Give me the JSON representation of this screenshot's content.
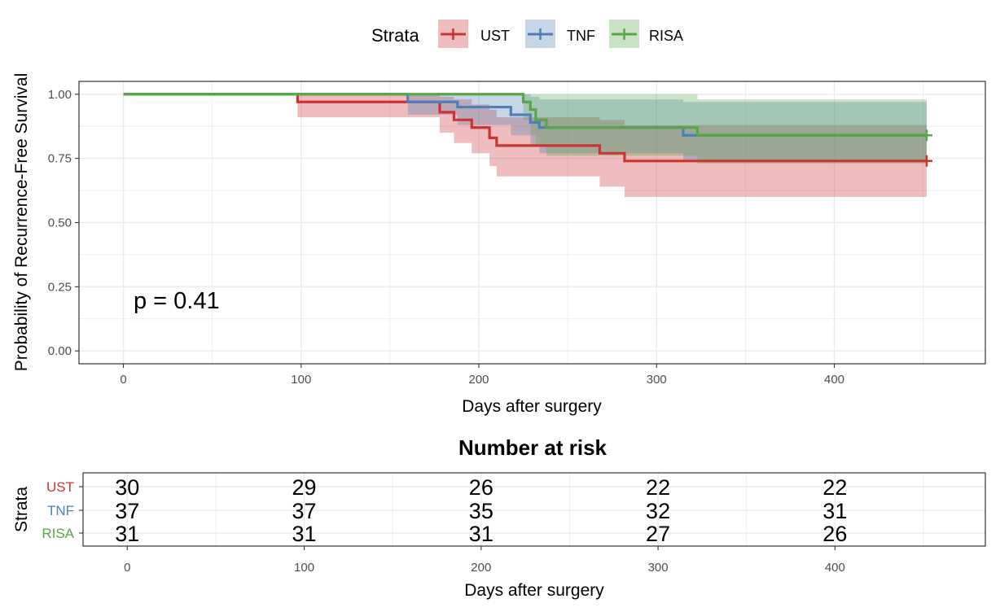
{
  "chart_data": [
    {
      "type": "line",
      "subtype": "kaplan-meier",
      "xlabel": "Days after surgery",
      "ylabel": "Probability of Recurrence-Free Survival",
      "xlim": [
        -25,
        485
      ],
      "ylim": [
        -0.05,
        1.05
      ],
      "x_ticks": [
        "0",
        "100",
        "200",
        "300",
        "400"
      ],
      "y_ticks": [
        "0.00",
        "0.25",
        "0.50",
        "0.75",
        "1.00"
      ],
      "grid": true,
      "annotation": "p = 0.41",
      "legend": {
        "title": "Strata",
        "position": "top"
      },
      "series": [
        {
          "name": "UST",
          "color": "#cc3333",
          "steps": [
            [
              0,
              1.0
            ],
            [
              98,
              0.97
            ],
            [
              178,
              0.93
            ],
            [
              186,
              0.9
            ],
            [
              196,
              0.87
            ],
            [
              206,
              0.83
            ],
            [
              210,
              0.8
            ],
            [
              268,
              0.77
            ],
            [
              282,
              0.74
            ],
            [
              452,
              0.74
            ]
          ],
          "ci_upper": [
            [
              0,
              1.0
            ],
            [
              98,
              1.0
            ],
            [
              178,
              0.99
            ],
            [
              186,
              0.98
            ],
            [
              196,
              0.96
            ],
            [
              206,
              0.94
            ],
            [
              210,
              0.91
            ],
            [
              268,
              0.9
            ],
            [
              282,
              0.88
            ],
            [
              452,
              0.88
            ]
          ],
          "ci_lower": [
            [
              0,
              1.0
            ],
            [
              98,
              0.91
            ],
            [
              178,
              0.85
            ],
            [
              186,
              0.81
            ],
            [
              196,
              0.77
            ],
            [
              206,
              0.72
            ],
            [
              210,
              0.68
            ],
            [
              268,
              0.64
            ],
            [
              282,
              0.6
            ],
            [
              452,
              0.6
            ]
          ],
          "censor_x": [
            452
          ]
        },
        {
          "name": "TNF",
          "color": "#4f7fb5",
          "steps": [
            [
              0,
              1.0
            ],
            [
              160,
              0.97
            ],
            [
              188,
              0.95
            ],
            [
              218,
              0.92
            ],
            [
              229,
              0.89
            ],
            [
              234,
              0.87
            ],
            [
              315,
              0.84
            ],
            [
              452,
              0.84
            ]
          ],
          "ci_upper": [
            [
              0,
              1.0
            ],
            [
              160,
              1.0
            ],
            [
              188,
              1.0
            ],
            [
              218,
              1.0
            ],
            [
              229,
              0.99
            ],
            [
              234,
              0.98
            ],
            [
              315,
              0.97
            ],
            [
              452,
              0.97
            ]
          ],
          "ci_lower": [
            [
              0,
              1.0
            ],
            [
              160,
              0.92
            ],
            [
              188,
              0.88
            ],
            [
              218,
              0.84
            ],
            [
              229,
              0.8
            ],
            [
              234,
              0.77
            ],
            [
              315,
              0.74
            ],
            [
              452,
              0.74
            ]
          ],
          "censor_x": []
        },
        {
          "name": "RISA",
          "color": "#5aa54a",
          "steps": [
            [
              0,
              1.0
            ],
            [
              225,
              0.97
            ],
            [
              229,
              0.94
            ],
            [
              232,
              0.9
            ],
            [
              238,
              0.87
            ],
            [
              323,
              0.84
            ],
            [
              452,
              0.84
            ]
          ],
          "ci_upper": [
            [
              0,
              1.0
            ],
            [
              225,
              1.0
            ],
            [
              229,
              1.0
            ],
            [
              232,
              1.0
            ],
            [
              238,
              1.0
            ],
            [
              323,
              0.98
            ],
            [
              452,
              0.98
            ]
          ],
          "ci_lower": [
            [
              0,
              1.0
            ],
            [
              225,
              0.9
            ],
            [
              229,
              0.84
            ],
            [
              232,
              0.8
            ],
            [
              238,
              0.76
            ],
            [
              323,
              0.73
            ],
            [
              452,
              0.73
            ]
          ],
          "censor_x": [
            452
          ]
        }
      ]
    },
    {
      "type": "table",
      "title": "Number at risk",
      "xlabel": "Days after surgery",
      "ylabel": "Strata",
      "xlim": [
        -25,
        485
      ],
      "x_ticks": [
        "0",
        "100",
        "200",
        "300",
        "400"
      ],
      "columns_x": [
        0,
        100,
        200,
        300,
        400
      ],
      "rows": [
        {
          "name": "UST",
          "color": "#cc3333",
          "values": [
            "30",
            "29",
            "26",
            "22",
            "22"
          ]
        },
        {
          "name": "TNF",
          "color": "#4f7fb5",
          "values": [
            "37",
            "37",
            "35",
            "32",
            "31"
          ]
        },
        {
          "name": "RISA",
          "color": "#5aa54a",
          "values": [
            "31",
            "31",
            "31",
            "27",
            "26"
          ]
        }
      ]
    }
  ]
}
